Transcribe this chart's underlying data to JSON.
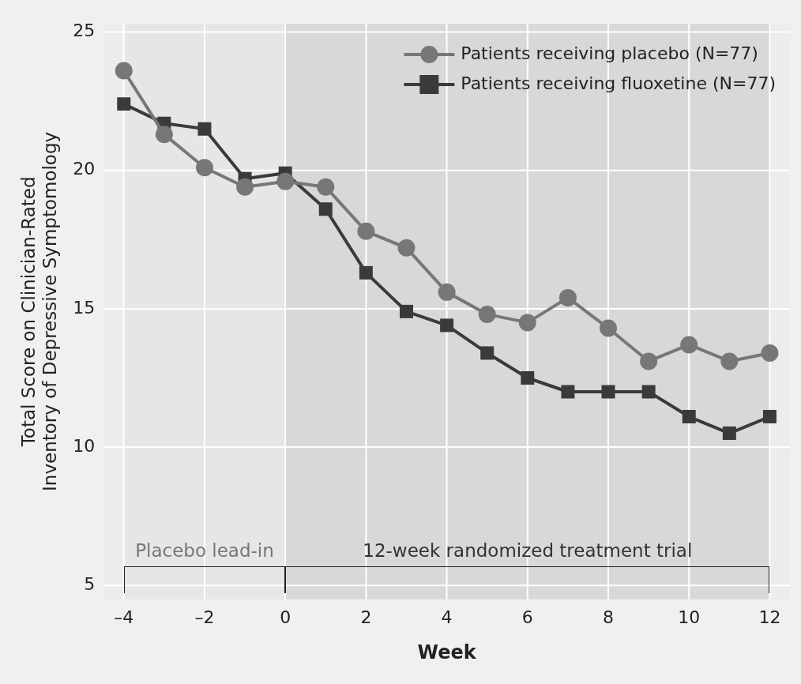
{
  "chart_data": {
    "type": "line",
    "xlabel": "Week",
    "ylabel": "Total Score on Clinician-Rated Inventory of Depressive Symptomology",
    "x": [
      -4,
      -3,
      -2,
      -1,
      0,
      1,
      2,
      3,
      4,
      5,
      6,
      7,
      8,
      9,
      10,
      11,
      12
    ],
    "series": [
      {
        "name": "Patients receiving placebo (N=77)",
        "color": "#777777",
        "marker": "circle",
        "values": [
          23.6,
          21.3,
          20.1,
          19.4,
          19.6,
          19.4,
          17.8,
          17.2,
          15.6,
          14.8,
          14.5,
          15.4,
          14.3,
          13.1,
          13.7,
          13.1,
          13.4
        ]
      },
      {
        "name": "Patients receiving fluoxetine (N=77)",
        "color": "#3a3a3a",
        "marker": "square",
        "values": [
          22.4,
          21.7,
          21.5,
          19.7,
          19.9,
          18.6,
          16.3,
          14.9,
          14.4,
          13.4,
          12.5,
          12.0,
          12.0,
          12.0,
          11.1,
          10.5,
          11.1
        ]
      }
    ],
    "xlim": [
      -4.5,
      12.5
    ],
    "xticks": [
      {
        "value": -4,
        "label": "–4"
      },
      {
        "value": -2,
        "label": "–2"
      },
      0,
      2,
      4,
      6,
      8,
      10,
      12
    ],
    "ylim": [
      4.5,
      25.3
    ],
    "yticks": [
      5,
      10,
      15,
      20,
      25
    ],
    "bands": [
      {
        "axis": "x",
        "from": -4,
        "to": 0,
        "label": "Placebo lead-in",
        "color": "#e6e6e6"
      },
      {
        "axis": "x",
        "from": 0,
        "to": 12,
        "label": "12-week randomized treatment trial",
        "color": "#d8d8d8"
      }
    ],
    "grid": true,
    "legend": "top right"
  }
}
